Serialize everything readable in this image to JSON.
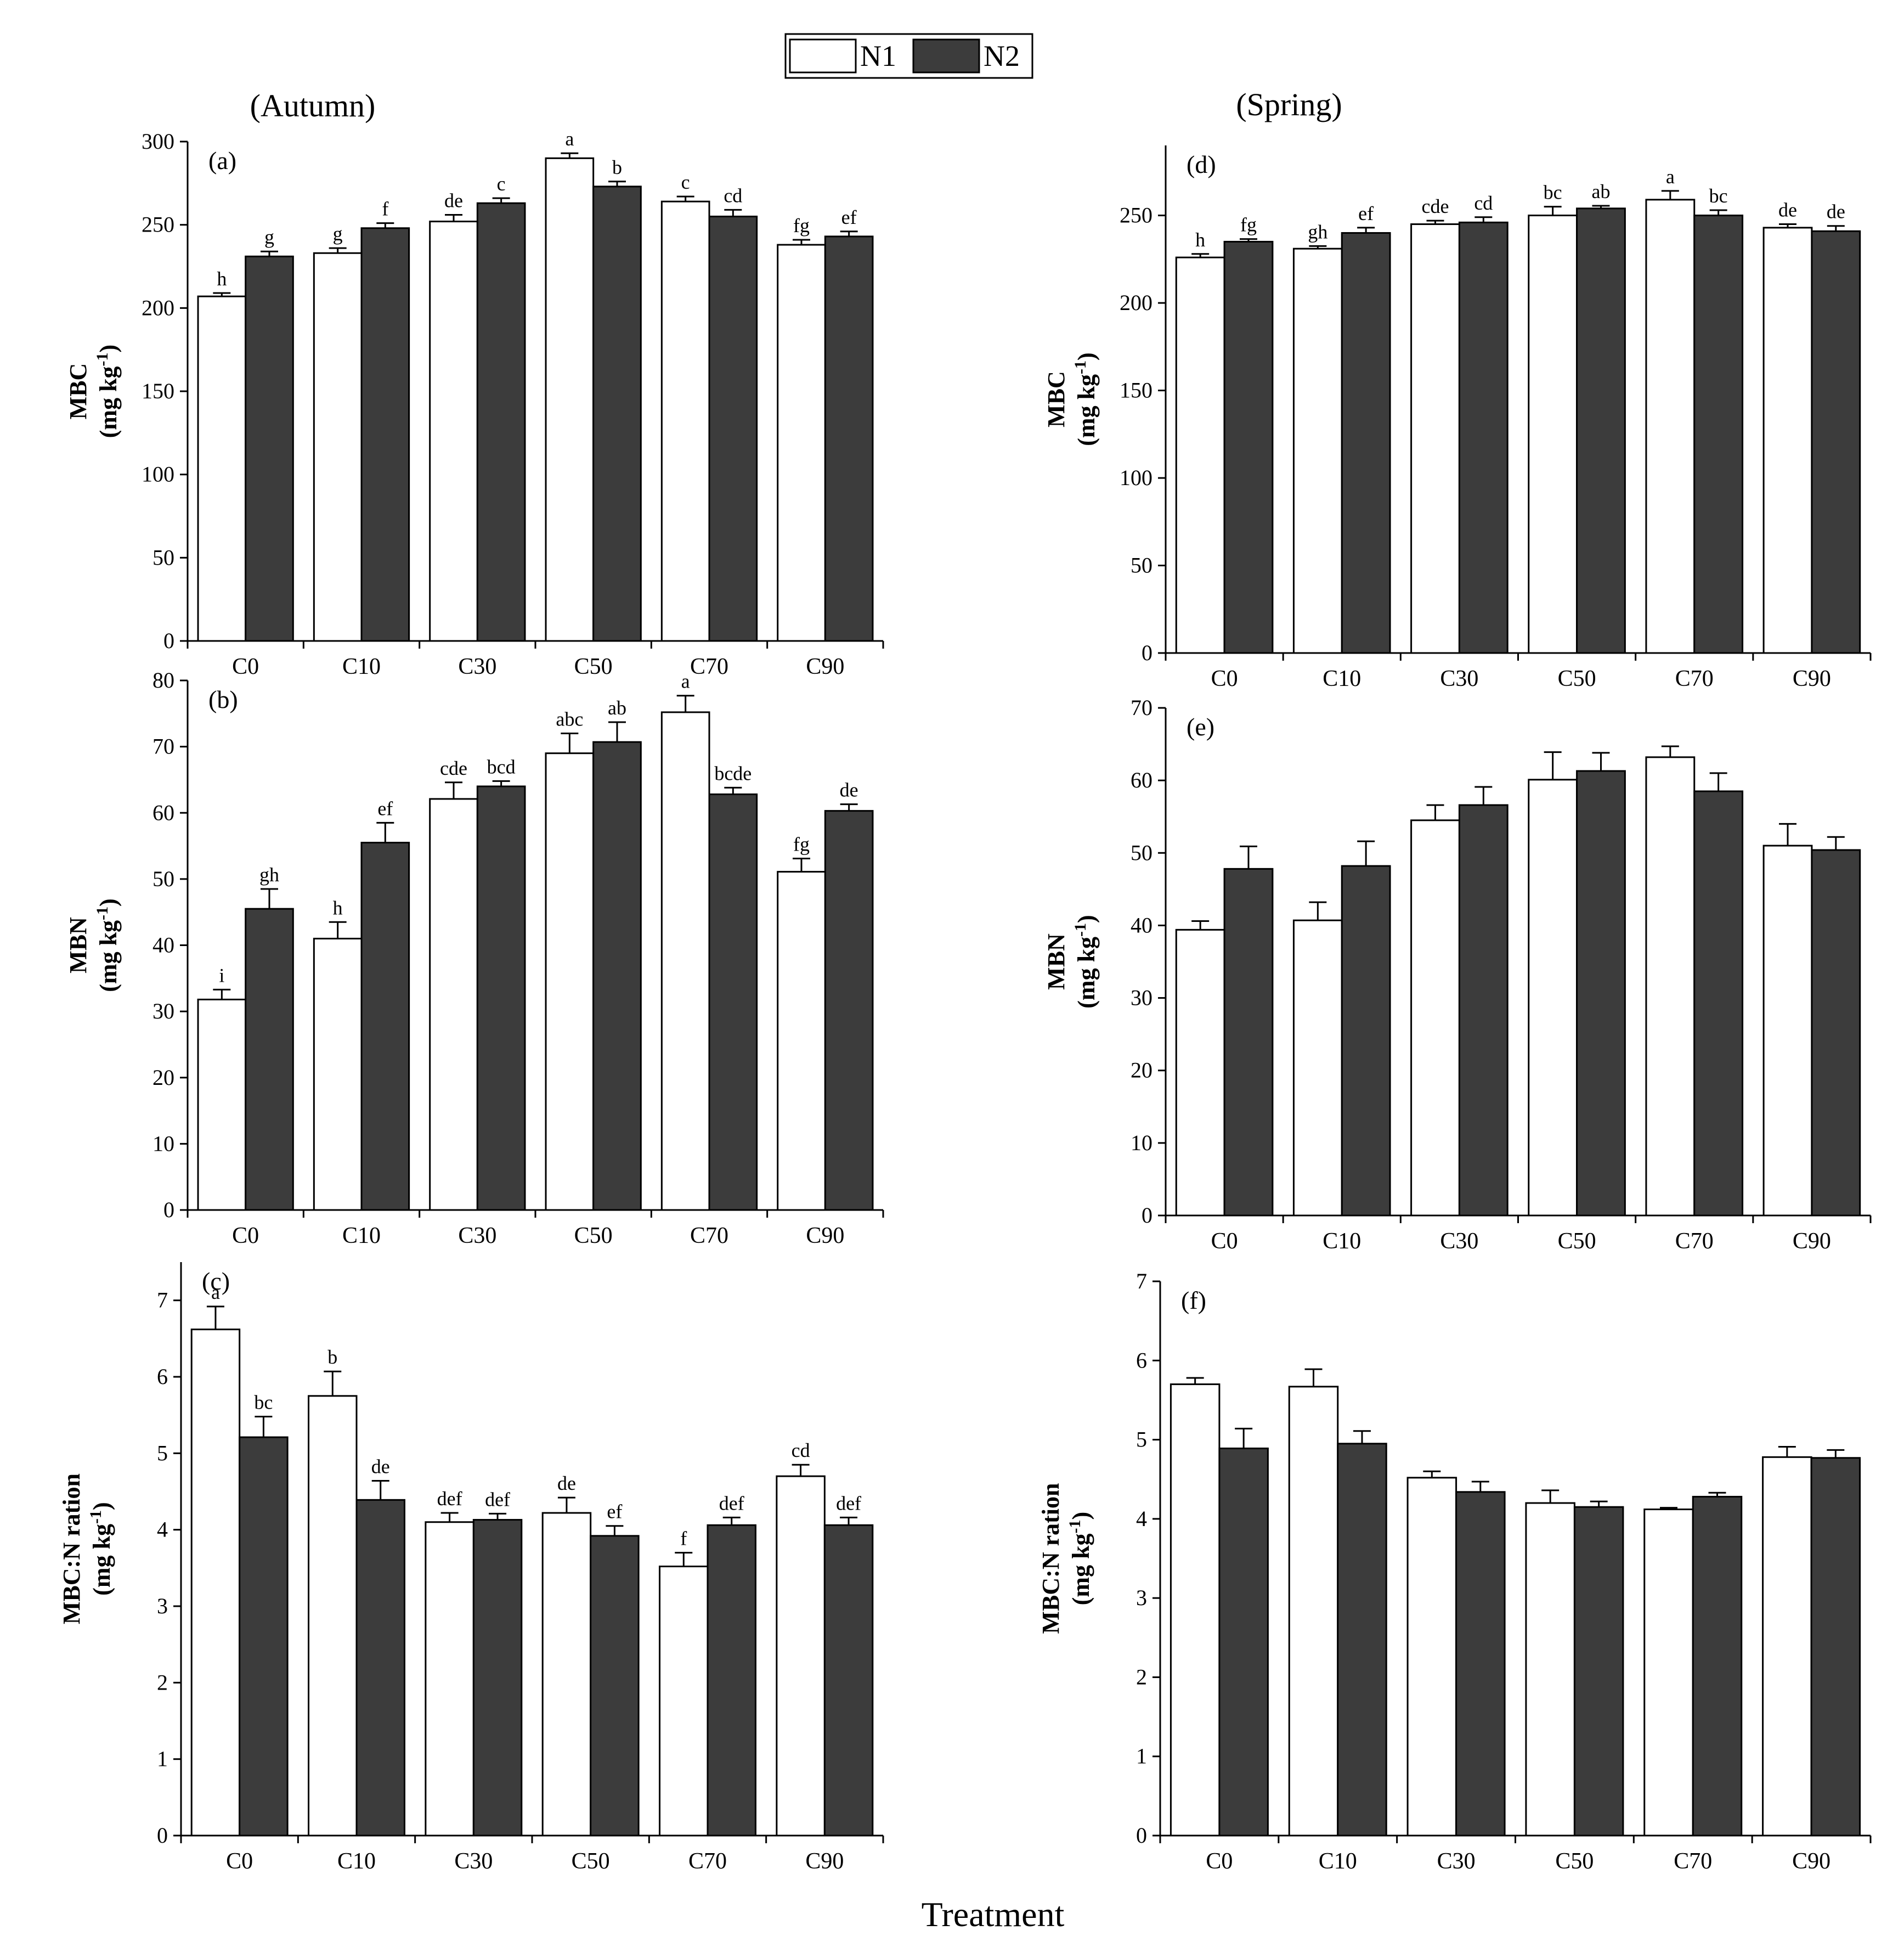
{
  "legend": {
    "items": [
      {
        "name": "N1",
        "color": "#ffffff"
      },
      {
        "name": "N2",
        "color": "#3c3c3c"
      }
    ]
  },
  "seasons": {
    "autumn": "(Autumn)",
    "spring": "(Spring)"
  },
  "x_axis_title": "Treatment",
  "colors": {
    "n1": "#ffffff",
    "n2": "#3c3c3c",
    "axis": "#000000"
  },
  "chart_data": [
    {
      "id": "a",
      "label": "(a)",
      "season": "Autumn",
      "type": "bar",
      "ylabel": "MBC",
      "yunit": "(mg kg-1)",
      "ylim": [
        0,
        300
      ],
      "yticks": [
        0,
        50,
        100,
        150,
        200,
        250,
        300
      ],
      "categories": [
        "C0",
        "C10",
        "C30",
        "C50",
        "C70",
        "C90"
      ],
      "series": [
        {
          "name": "N1",
          "values": [
            207,
            233,
            252,
            290,
            264,
            238
          ],
          "errors": [
            2,
            3,
            4,
            3,
            3,
            3
          ],
          "letters": [
            "h",
            "g",
            "de",
            "a",
            "c",
            "fg"
          ]
        },
        {
          "name": "N2",
          "values": [
            231,
            248,
            263,
            273,
            255,
            243
          ],
          "errors": [
            3,
            3,
            3,
            3,
            4,
            3
          ],
          "letters": [
            "g",
            "f",
            "c",
            "b",
            "cd",
            "ef"
          ]
        }
      ]
    },
    {
      "id": "b",
      "label": "(b)",
      "season": "Autumn",
      "type": "bar",
      "ylabel": "MBN",
      "yunit": "(mg kg-1)",
      "ylim": [
        0,
        80
      ],
      "yticks": [
        0,
        10,
        20,
        30,
        40,
        50,
        60,
        70,
        80
      ],
      "categories": [
        "C0",
        "C10",
        "C30",
        "C50",
        "C70",
        "C90"
      ],
      "series": [
        {
          "name": "N1",
          "values": [
            31.8,
            41.0,
            62.1,
            69.0,
            75.2,
            51.1
          ],
          "errors": [
            1.5,
            2.5,
            2.5,
            3.0,
            2.5,
            2.0
          ],
          "letters": [
            "i",
            "h",
            "cde",
            "abc",
            "a",
            "fg"
          ]
        },
        {
          "name": "N2",
          "values": [
            45.5,
            55.5,
            64.0,
            70.7,
            62.8,
            60.3
          ],
          "errors": [
            3.0,
            3.0,
            0.8,
            3.0,
            1.0,
            1.0
          ],
          "letters": [
            "gh",
            "ef",
            "bcd",
            "ab",
            "bcde",
            "de"
          ]
        }
      ]
    },
    {
      "id": "c",
      "label": "(c)",
      "season": "Autumn",
      "type": "bar",
      "ylabel": "MBC:N ration",
      "yunit": "(mg kg-1)",
      "ylim": [
        0,
        7.5
      ],
      "yticks": [
        0,
        1,
        2,
        3,
        4,
        5,
        6,
        7
      ],
      "categories": [
        "C0",
        "C10",
        "C30",
        "C50",
        "C70",
        "C90"
      ],
      "series": [
        {
          "name": "N1",
          "values": [
            6.62,
            5.75,
            4.1,
            4.22,
            3.52,
            4.7
          ],
          "errors": [
            0.3,
            0.32,
            0.12,
            0.2,
            0.18,
            0.15
          ],
          "letters": [
            "a",
            "b",
            "def",
            "de",
            "f",
            "cd"
          ]
        },
        {
          "name": "N2",
          "values": [
            5.21,
            4.39,
            4.13,
            3.92,
            4.06,
            4.06
          ],
          "errors": [
            0.27,
            0.25,
            0.08,
            0.13,
            0.1,
            0.1
          ],
          "letters": [
            "bc",
            "de",
            "def",
            "ef",
            "def",
            "def"
          ]
        }
      ]
    },
    {
      "id": "d",
      "label": "(d)",
      "season": "Spring",
      "type": "bar",
      "ylabel": "MBC",
      "yunit": "(mg kg-1)",
      "ylim": [
        0,
        290
      ],
      "yticks": [
        0,
        50,
        100,
        150,
        200,
        250
      ],
      "categories": [
        "C0",
        "C10",
        "C30",
        "C50",
        "C70",
        "C90"
      ],
      "series": [
        {
          "name": "N1",
          "values": [
            226,
            231,
            245,
            250,
            259,
            243
          ],
          "errors": [
            2,
            1.5,
            2,
            5,
            5,
            2
          ],
          "letters": [
            "h",
            "gh",
            "cde",
            "bc",
            "a",
            "de"
          ]
        },
        {
          "name": "N2",
          "values": [
            235,
            240,
            246,
            254,
            250,
            241
          ],
          "errors": [
            1.5,
            3,
            3,
            1.5,
            3,
            3
          ],
          "letters": [
            "fg",
            "ef",
            "cd",
            "ab",
            "bc",
            "de"
          ]
        }
      ]
    },
    {
      "id": "e",
      "label": "(e)",
      "season": "Spring",
      "type": "bar",
      "ylabel": "MBN",
      "yunit": "(mg kg-1)",
      "ylim": [
        0,
        70
      ],
      "yticks": [
        0,
        10,
        20,
        30,
        40,
        50,
        60,
        70
      ],
      "categories": [
        "C0",
        "C10",
        "C30",
        "C50",
        "C70",
        "C90"
      ],
      "series": [
        {
          "name": "N1",
          "values": [
            39.4,
            40.7,
            54.5,
            60.1,
            63.2,
            51.0
          ],
          "errors": [
            1.2,
            2.5,
            2.1,
            3.8,
            1.5,
            3.0
          ]
        },
        {
          "name": "N2",
          "values": [
            47.8,
            48.2,
            56.6,
            61.3,
            58.5,
            50.4
          ],
          "errors": [
            3.1,
            3.4,
            2.5,
            2.5,
            2.5,
            1.8
          ]
        }
      ]
    },
    {
      "id": "f",
      "label": "(f)",
      "season": "Spring",
      "type": "bar",
      "ylabel": "MBC:N ration",
      "yunit": "(mg kg-1)",
      "ylim": [
        0,
        7
      ],
      "yticks": [
        0,
        1,
        2,
        3,
        4,
        5,
        6,
        7
      ],
      "categories": [
        "C0",
        "C10",
        "C30",
        "C50",
        "C70",
        "C90"
      ],
      "series": [
        {
          "name": "N1",
          "values": [
            5.7,
            5.67,
            4.52,
            4.2,
            4.12,
            4.78
          ],
          "errors": [
            0.08,
            0.22,
            0.08,
            0.16,
            0.02,
            0.13
          ]
        },
        {
          "name": "N2",
          "values": [
            4.89,
            4.95,
            4.34,
            4.15,
            4.28,
            4.77
          ],
          "errors": [
            0.25,
            0.16,
            0.13,
            0.07,
            0.05,
            0.1
          ]
        }
      ]
    }
  ]
}
